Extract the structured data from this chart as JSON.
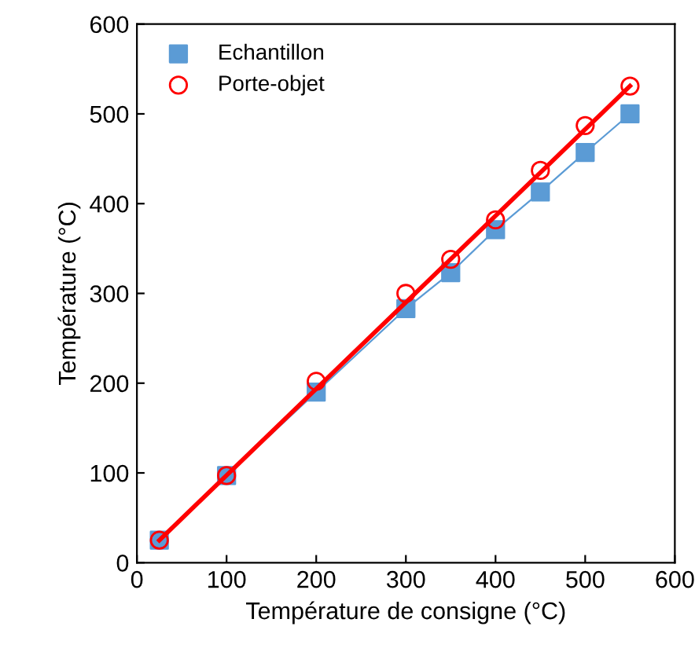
{
  "chart_data": {
    "type": "scatter",
    "xlabel": "Température de consigne (°C)",
    "ylabel": "Température (°C)",
    "x": [
      25,
      100,
      200,
      300,
      350,
      400,
      450,
      500,
      550
    ],
    "series": [
      {
        "name": "Echantillon",
        "color": "#5b9bd5",
        "marker": "square",
        "values": [
          25,
          97,
          190,
          283,
          323,
          371,
          413,
          457,
          500
        ]
      },
      {
        "name": "Porte-objet",
        "color": "#ff0000",
        "marker": "circle",
        "values": [
          25,
          97,
          202,
          300,
          338,
          382,
          437,
          487,
          531
        ]
      },
      {
        "type": "line",
        "color": "#5b9bd5",
        "x": [
          25,
          100,
          200,
          300,
          350,
          400,
          450,
          500,
          550
        ],
        "values": [
          25,
          97,
          190,
          283,
          323,
          371,
          413,
          457,
          500
        ]
      },
      {
        "type": "line",
        "color": "#ff0000",
        "x": [
          25,
          550
        ],
        "values": [
          25,
          531
        ]
      }
    ],
    "xlim": [
      0,
      600
    ],
    "ylim": [
      0,
      600
    ],
    "xticks": [
      0,
      100,
      200,
      300,
      400,
      500,
      600
    ],
    "yticks": [
      0,
      100,
      200,
      300,
      400,
      500,
      600
    ],
    "grid": false,
    "legend": "top left"
  }
}
